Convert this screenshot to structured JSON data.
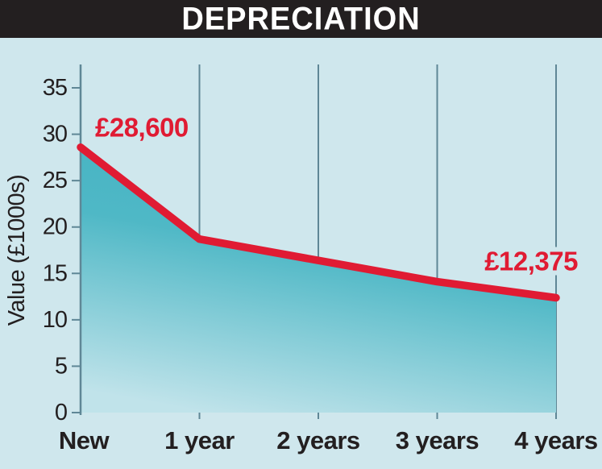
{
  "title": "DEPRECIATION",
  "chart_data": {
    "type": "area",
    "categories": [
      "New",
      "1 year",
      "2 years",
      "3 years",
      "4 years"
    ],
    "values": [
      28.6,
      18.7,
      16.4,
      14.1,
      12.375
    ],
    "title": "DEPRECIATION",
    "xlabel": "",
    "ylabel": "Value (£1000s)",
    "ylim": [
      0,
      35
    ],
    "ytick_step": 5,
    "grid": "vertical-only",
    "legend": "none",
    "annotations": [
      {
        "text": "£28,600",
        "point_index": 0
      },
      {
        "text": "£12,375",
        "point_index": 4
      }
    ]
  },
  "colors": {
    "banner_bg": "#231f20",
    "banner_text": "#ffffff",
    "background": "#cfe7ed",
    "line": "#e01b33",
    "annotation_text": "#e01b33",
    "fill_top": "#45b3c3",
    "fill_bottom": "#c0e3ea",
    "grid": "#5f8796",
    "axis": "#5f8796",
    "tick_text": "#231f20",
    "x_label_text": "#231f20"
  }
}
